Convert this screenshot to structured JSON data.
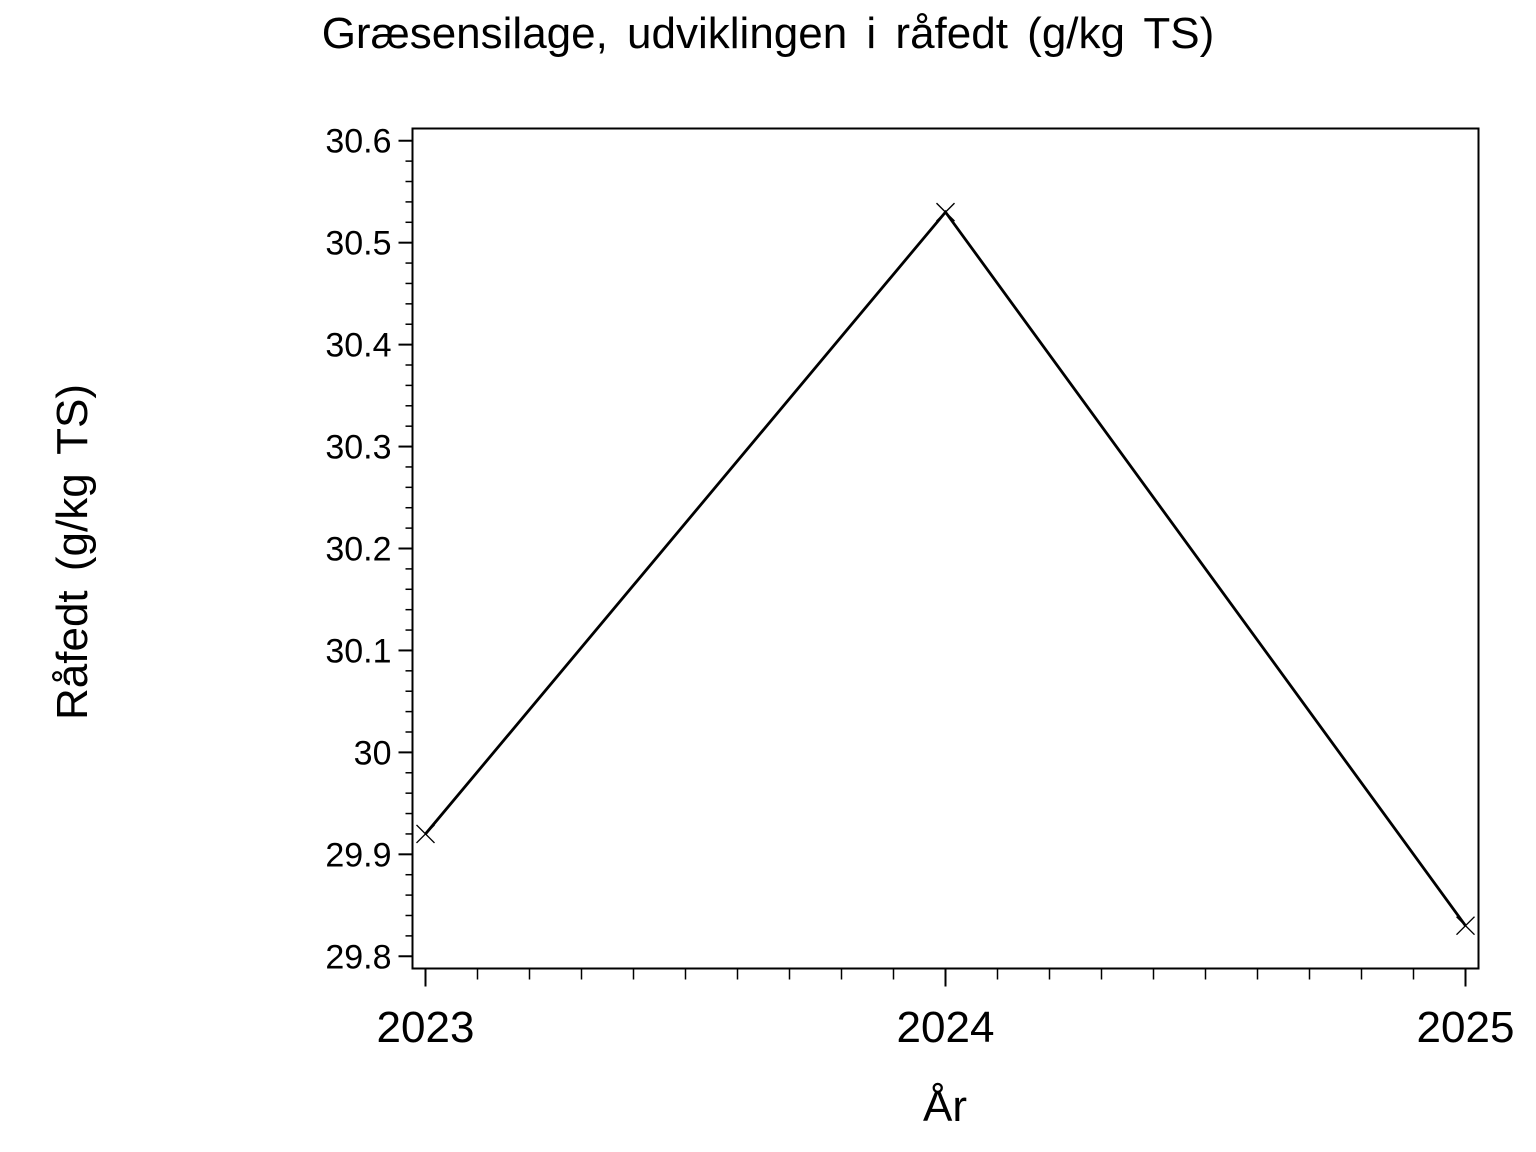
{
  "chart_data": {
    "type": "line",
    "title": "Græsensilage, udviklingen i råfedt (g/kg TS)",
    "xlabel": "År",
    "ylabel": "Råfedt (g/kg TS)",
    "series": [
      {
        "name": "Råfedt",
        "x": [
          2023,
          2024,
          2025
        ],
        "y": [
          29.92,
          30.53,
          29.83
        ],
        "marker": "x",
        "color": "#000000"
      }
    ],
    "xlim": [
      2022.975,
      2025.025
    ],
    "ylim": [
      29.788,
      30.612
    ],
    "x_major_ticks": [
      2023,
      2024,
      2025
    ],
    "x_minor_step": 0.1,
    "y_major_ticks": [
      29.8,
      29.9,
      30,
      30.1,
      30.2,
      30.3,
      30.4,
      30.5,
      30.6
    ],
    "y_minor_step": 0.02,
    "grid": false,
    "legend": false,
    "frame": true,
    "axis_color": "#000000",
    "background_color": "#ffffff",
    "text_color": "#000000"
  }
}
